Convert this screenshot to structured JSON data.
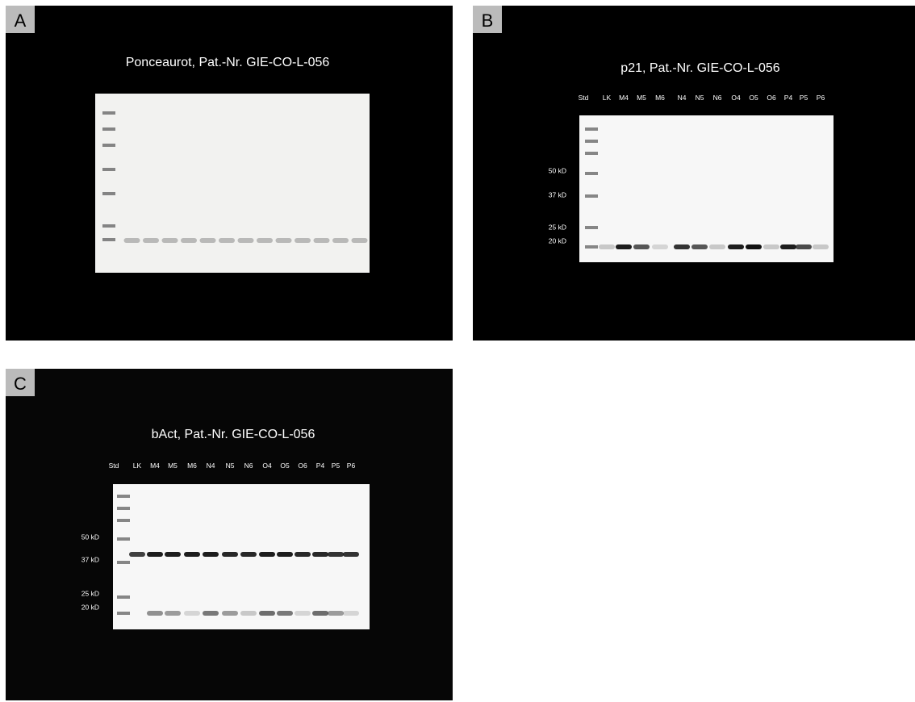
{
  "panels": [
    {
      "label": "A",
      "title": "Ponceaurot, Pat.-Nr. GIE-CO-L-056"
    },
    {
      "label": "B",
      "title": "p21, Pat.-Nr. GIE-CO-L-056",
      "lanes": [
        "Std",
        "LK",
        "M4",
        "M5",
        "M6",
        "N4",
        "N5",
        "N6",
        "O4",
        "O5",
        "O6",
        "P4",
        "P5",
        "P6"
      ],
      "markers": [
        "50 kD",
        "37 kD",
        "25 kD",
        "20 kD"
      ]
    },
    {
      "label": "C",
      "title": "bAct, Pat.-Nr. GIE-CO-L-056",
      "lanes": [
        "Std",
        "LK",
        "M4",
        "M5",
        "M6",
        "N4",
        "N5",
        "N6",
        "O4",
        "O5",
        "O6",
        "P4",
        "P5",
        "P6"
      ],
      "markers": [
        "50 kD",
        "37 kD",
        "25 kD",
        "20 kD"
      ]
    }
  ]
}
